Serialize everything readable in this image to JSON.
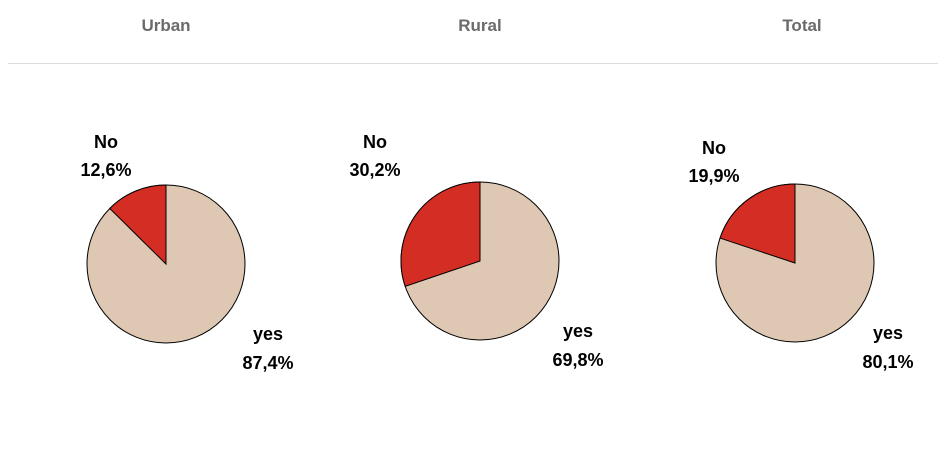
{
  "chart_data": [
    {
      "type": "pie",
      "title": "Urban",
      "slices": [
        {
          "label": "No",
          "value": 12.6,
          "value_text": "12,6%",
          "color": "#d42e24"
        },
        {
          "label": "yes",
          "value": 87.4,
          "value_text": "87,4%",
          "color": "#dfc8b3"
        }
      ]
    },
    {
      "type": "pie",
      "title": "Rural",
      "slices": [
        {
          "label": "No",
          "value": 30.2,
          "value_text": "30,2%",
          "color": "#d42e24"
        },
        {
          "label": "yes",
          "value": 69.8,
          "value_text": "69,8%",
          "color": "#dfc8b3"
        }
      ]
    },
    {
      "type": "pie",
      "title": "Total",
      "slices": [
        {
          "label": "No",
          "value": 19.9,
          "value_text": "19,9%",
          "color": "#d42e24"
        },
        {
          "label": "yes",
          "value": 80.1,
          "value_text": "80,1%",
          "color": "#dfc8b3"
        }
      ]
    }
  ]
}
